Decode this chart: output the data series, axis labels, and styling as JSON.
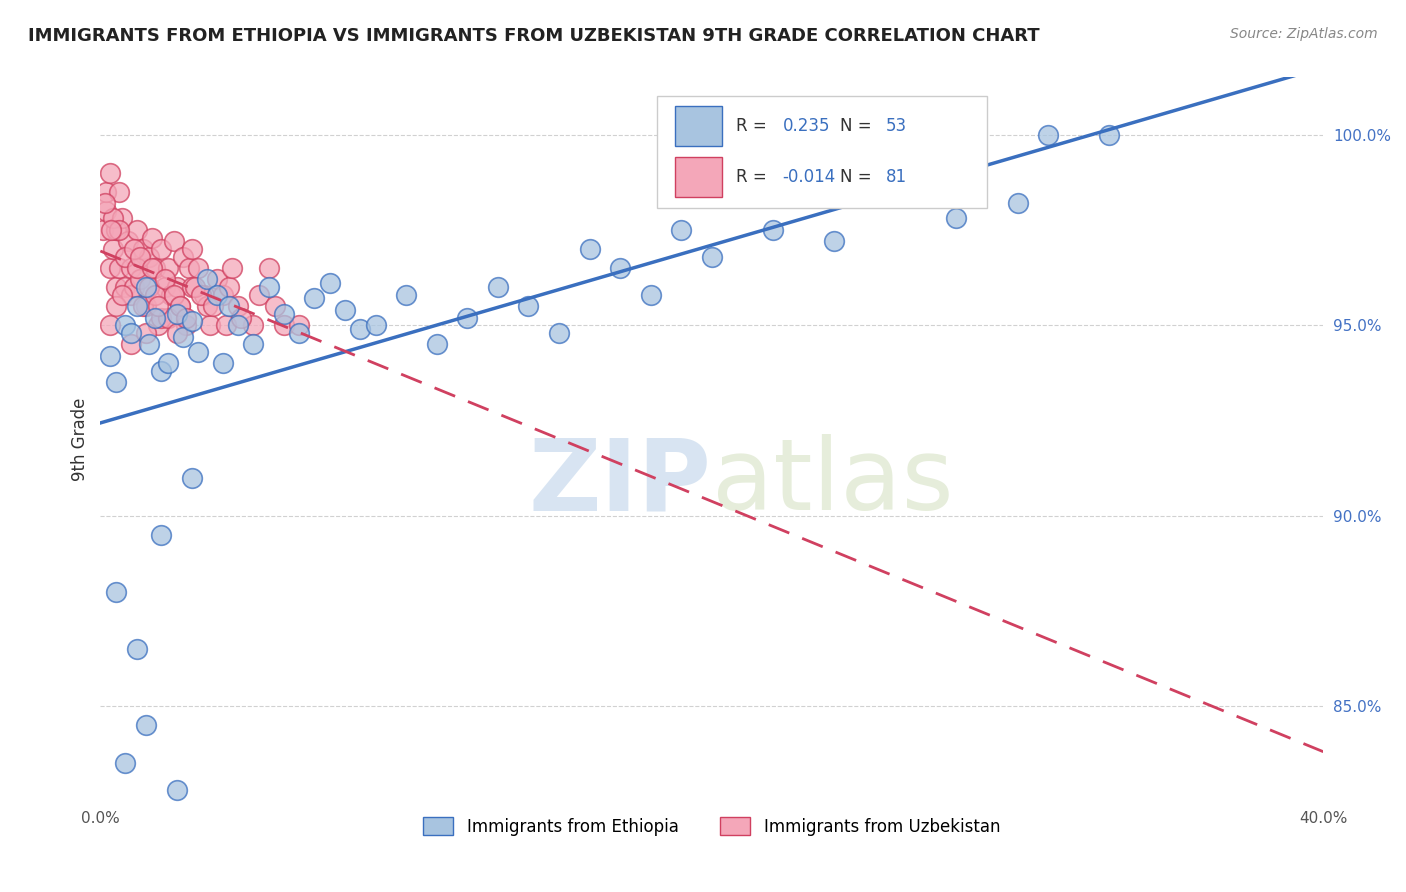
{
  "title": "IMMIGRANTS FROM ETHIOPIA VS IMMIGRANTS FROM UZBEKISTAN 9TH GRADE CORRELATION CHART",
  "source_text": "Source: ZipAtlas.com",
  "ylabel": "9th Grade",
  "watermark_zip": "ZIP",
  "watermark_atlas": "atlas",
  "legend_ethiopia": "Immigrants from Ethiopia",
  "legend_uzbekistan": "Immigrants from Uzbekistan",
  "r_ethiopia": 0.235,
  "n_ethiopia": 53,
  "r_uzbekistan": -0.014,
  "n_uzbekistan": 81,
  "color_ethiopia": "#a8c4e0",
  "color_uzbekistan": "#f4a7b9",
  "line_color_ethiopia": "#3a6fbf",
  "line_color_uzbekistan": "#d04060",
  "xlim": [
    0.0,
    40.0
  ],
  "ylim": [
    82.5,
    101.5
  ],
  "ethiopia_x": [
    0.3,
    0.5,
    0.8,
    1.0,
    1.2,
    1.5,
    1.6,
    1.8,
    2.0,
    2.2,
    2.5,
    2.7,
    3.0,
    3.2,
    3.5,
    3.8,
    4.0,
    4.2,
    4.5,
    5.0,
    5.5,
    6.0,
    6.5,
    7.0,
    7.5,
    8.0,
    8.5,
    9.0,
    10.0,
    11.0,
    12.0,
    13.0,
    14.0,
    15.0,
    16.0,
    17.0,
    18.0,
    19.0,
    20.0,
    22.0,
    24.0,
    26.0,
    28.0,
    30.0,
    31.0,
    33.0,
    2.0,
    3.0,
    0.5,
    0.8,
    1.2,
    1.5,
    2.5
  ],
  "ethiopia_y": [
    94.2,
    93.5,
    95.0,
    94.8,
    95.5,
    96.0,
    94.5,
    95.2,
    93.8,
    94.0,
    95.3,
    94.7,
    95.1,
    94.3,
    96.2,
    95.8,
    94.0,
    95.5,
    95.0,
    94.5,
    96.0,
    95.3,
    94.8,
    95.7,
    96.1,
    95.4,
    94.9,
    95.0,
    95.8,
    94.5,
    95.2,
    96.0,
    95.5,
    94.8,
    97.0,
    96.5,
    95.8,
    97.5,
    96.8,
    97.5,
    97.2,
    98.5,
    97.8,
    98.2,
    100.0,
    100.0,
    89.5,
    91.0,
    88.0,
    83.5,
    86.5,
    84.5,
    82.8
  ],
  "uzbekistan_x": [
    0.1,
    0.2,
    0.3,
    0.4,
    0.5,
    0.5,
    0.6,
    0.7,
    0.8,
    0.9,
    1.0,
    1.0,
    1.1,
    1.2,
    1.3,
    1.4,
    1.5,
    1.6,
    1.7,
    1.8,
    1.9,
    2.0,
    2.1,
    2.2,
    2.3,
    2.4,
    2.5,
    2.6,
    2.7,
    2.8,
    2.9,
    3.0,
    3.2,
    3.4,
    3.6,
    3.8,
    4.0,
    4.2,
    4.5,
    5.0,
    5.5,
    6.0,
    0.3,
    0.5,
    0.7,
    1.0,
    1.5,
    2.0,
    0.2,
    0.4,
    0.6,
    0.8,
    1.2,
    1.4,
    1.6,
    1.8,
    2.2,
    2.5,
    3.0,
    3.5,
    0.3,
    0.6,
    1.1,
    1.3,
    1.7,
    1.9,
    2.1,
    2.4,
    2.6,
    2.8,
    3.1,
    3.3,
    3.7,
    4.1,
    4.3,
    4.6,
    5.2,
    5.7,
    6.5,
    0.15,
    0.35
  ],
  "uzbekistan_y": [
    97.5,
    98.0,
    96.5,
    97.0,
    97.5,
    96.0,
    96.5,
    97.8,
    96.0,
    97.2,
    96.5,
    95.8,
    96.0,
    97.5,
    96.2,
    97.0,
    95.5,
    96.8,
    97.3,
    96.5,
    95.0,
    97.0,
    96.0,
    96.5,
    95.8,
    97.2,
    96.0,
    95.5,
    96.8,
    95.0,
    96.5,
    97.0,
    96.5,
    95.8,
    95.0,
    96.2,
    95.8,
    96.0,
    95.5,
    95.0,
    96.5,
    95.0,
    95.0,
    95.5,
    95.8,
    94.5,
    94.8,
    95.2,
    98.5,
    97.8,
    97.5,
    96.8,
    96.5,
    95.5,
    96.0,
    95.8,
    95.2,
    94.8,
    96.0,
    95.5,
    99.0,
    98.5,
    97.0,
    96.8,
    96.5,
    95.5,
    96.2,
    95.8,
    95.5,
    95.2,
    96.0,
    95.8,
    95.5,
    95.0,
    96.5,
    95.2,
    95.8,
    95.5,
    95.0,
    98.2,
    97.5
  ]
}
